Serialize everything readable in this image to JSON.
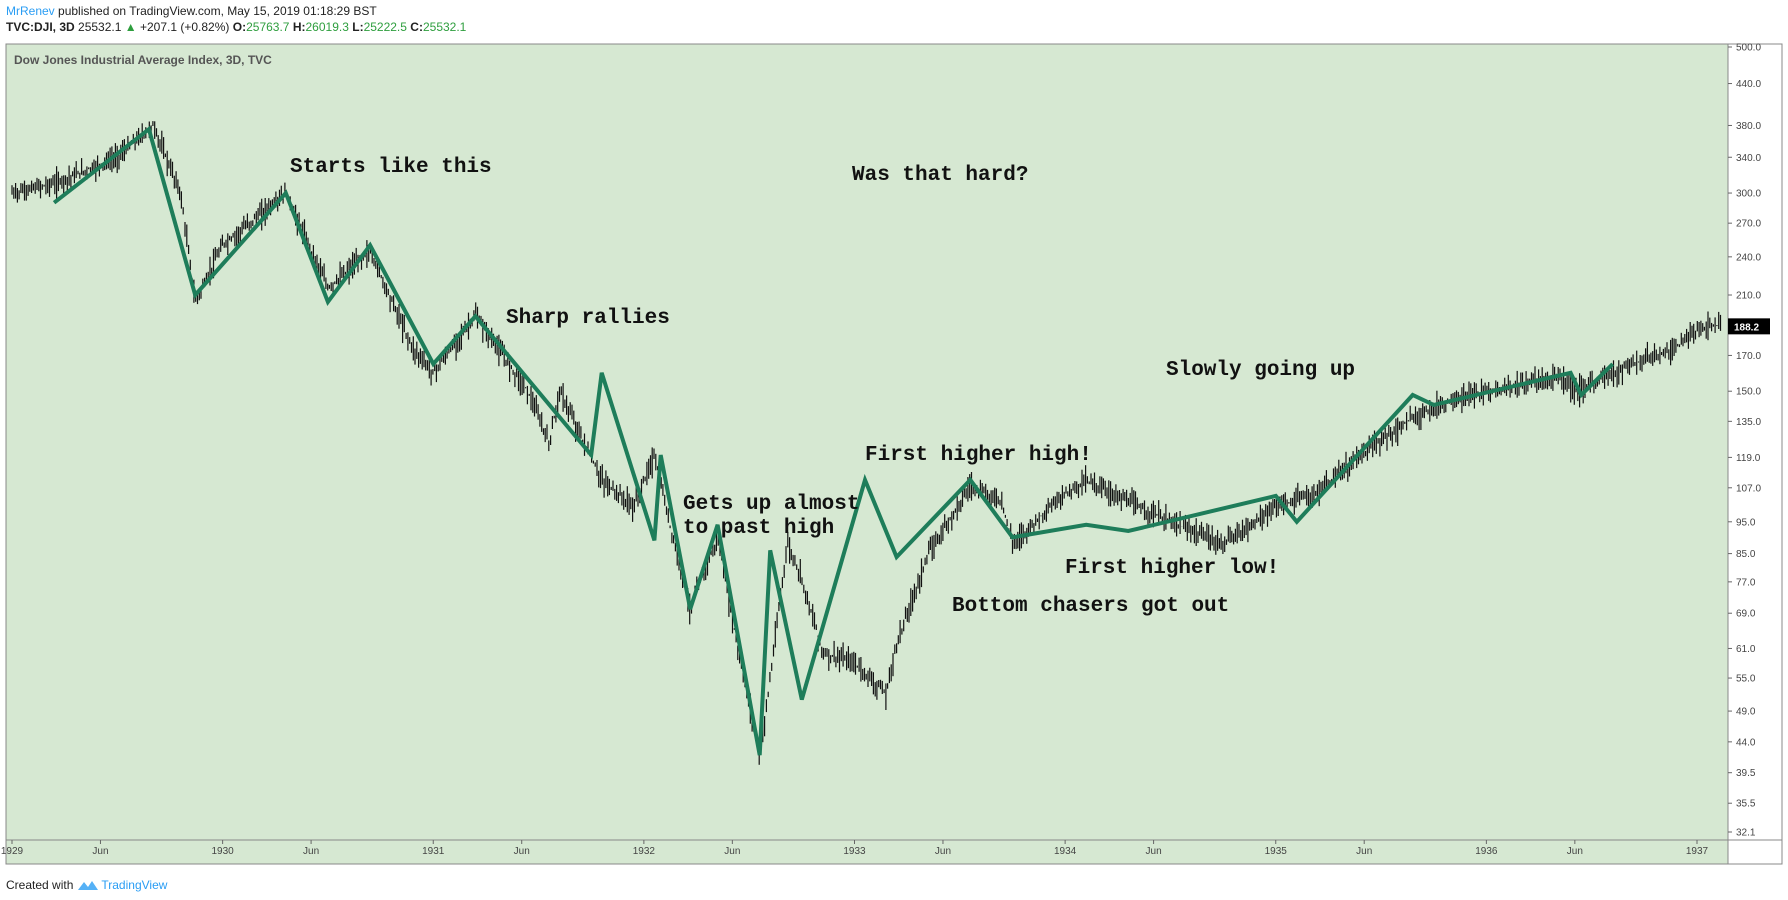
{
  "header": {
    "author": "MrRenev",
    "published": "published on TradingView.com, May 15, 2019 01:18:29 BST",
    "symbol": "TVC:DJI, 3D",
    "last": "25532.1",
    "change": "+207.1 (+0.82%)",
    "o_label": "O:",
    "o_value": "25763.7",
    "h_label": "H:",
    "h_value": "26019.3",
    "l_label": "L:",
    "l_value": "25222.5",
    "c_label": "C:",
    "c_value": "25532.1"
  },
  "footer": {
    "created_with": "Created with",
    "brand": "TradingView"
  },
  "colors": {
    "plot_bg": "#d6e8d2",
    "zigzag": "#1e7d5a",
    "price_tag_bg": "#000000",
    "accent": "#2a9df4",
    "up": "#2e9e3e"
  },
  "chart_data": {
    "type": "line",
    "title": "Dow Jones Industrial Average Index, 3D, TVC",
    "y_scale": "log",
    "ylim": [
      32.1,
      500.0
    ],
    "y_ticks": [
      "500.0",
      "440.0",
      "380.0",
      "340.0",
      "300.0",
      "270.0",
      "240.0",
      "210.0",
      "170.0",
      "150.0",
      "135.0",
      "119.0",
      "107.0",
      "95.0",
      "85.0",
      "77.0",
      "69.0",
      "61.0",
      "55.0",
      "49.0",
      "44.0",
      "39.5",
      "35.5",
      "32.1"
    ],
    "x_ticks": [
      "1929",
      "Jun",
      "1930",
      "Jun",
      "1931",
      "Jun",
      "1932",
      "Jun",
      "1933",
      "Jun",
      "1934",
      "Jun",
      "1935",
      "Jun",
      "1936",
      "Jun",
      "1937"
    ],
    "x_tick_dates": [
      1929.0,
      1929.42,
      1930.0,
      1930.42,
      1931.0,
      1931.42,
      1932.0,
      1932.42,
      1933.0,
      1933.42,
      1934.0,
      1934.42,
      1935.0,
      1935.42,
      1936.0,
      1936.42,
      1937.0
    ],
    "current_price_label": "188.2",
    "current_price": 188.2,
    "series": [
      {
        "type": "zigzag",
        "x": [
          1929.2,
          1929.65,
          1929.87,
          1930.3,
          1930.5,
          1930.7,
          1931.0,
          1931.2,
          1931.75,
          1931.8,
          1932.05,
          1932.08,
          1932.22,
          1932.35,
          1932.55,
          1932.6,
          1932.75,
          1933.05,
          1933.2,
          1933.55,
          1933.75,
          1934.1,
          1934.3,
          1935.0,
          1935.1,
          1935.65,
          1935.75,
          1936.4,
          1936.45,
          1936.6
        ],
        "y": [
          290,
          375,
          210,
          300,
          205,
          250,
          165,
          195,
          120,
          160,
          89,
          120,
          70,
          94,
          42,
          86,
          51,
          110,
          84,
          110,
          90,
          94,
          92,
          104,
          95,
          148,
          143,
          160,
          148,
          165
        ]
      }
    ],
    "annotations": [
      "Starts like this",
      "Was that hard?",
      "Sharp rallies",
      "Slowly going up",
      "First higher high!",
      "Gets up almost\nto past high",
      "First higher low!",
      "Bottom chasers got out"
    ]
  }
}
